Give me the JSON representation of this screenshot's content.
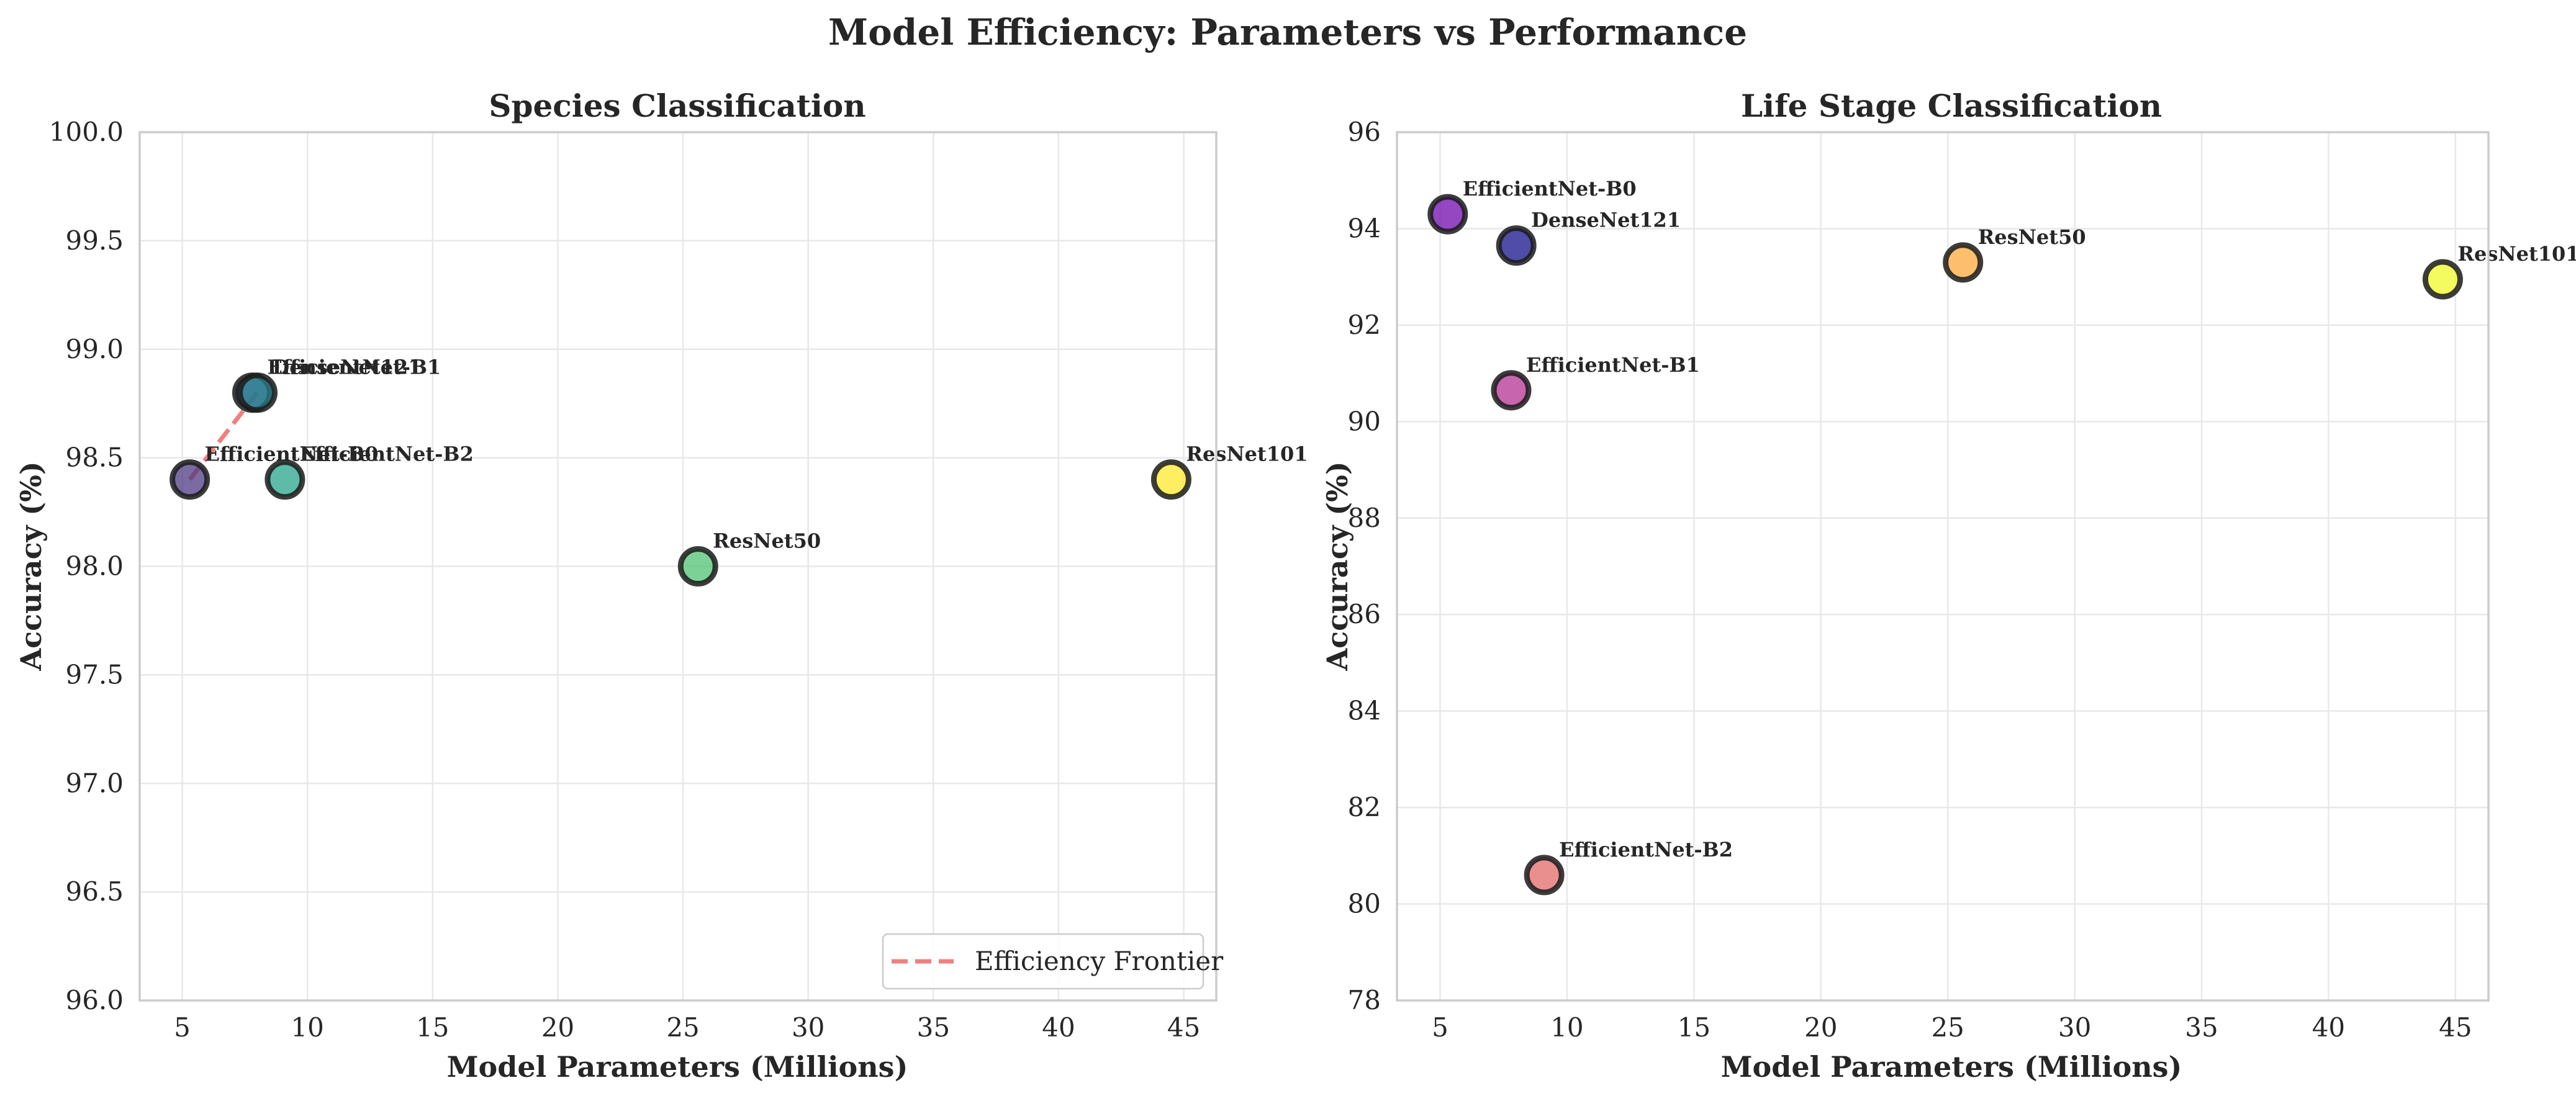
{
  "figure": {
    "title": "Model Efficiency: Parameters vs Performance"
  },
  "chart_data": [
    {
      "type": "scatter",
      "title": "Species Classification",
      "xlabel": "Model Parameters (Millions)",
      "ylabel": "Accuracy (%)",
      "xlim": [
        3.3,
        46.3
      ],
      "ylim": [
        96.0,
        100.0
      ],
      "xticks": [
        5,
        10,
        15,
        20,
        25,
        30,
        35,
        40,
        45
      ],
      "yticks": [
        96.0,
        96.5,
        97.0,
        97.5,
        98.0,
        98.5,
        99.0,
        99.5,
        100.0
      ],
      "ytick_decimals": 1,
      "grid": true,
      "points": [
        {
          "label": "EfficientNet-B0",
          "x": 5.3,
          "y": 98.4,
          "color": "#46337e"
        },
        {
          "label": "EfficientNet-B1",
          "x": 7.8,
          "y": 98.8,
          "color": "#365c8d"
        },
        {
          "label": "DenseNet121",
          "x": 8.0,
          "y": 98.8,
          "color": "#277f8e"
        },
        {
          "label": "EfficientNet-B2",
          "x": 9.1,
          "y": 98.4,
          "color": "#1fa187"
        },
        {
          "label": "ResNet50",
          "x": 25.6,
          "y": 98.0,
          "color": "#4ac16d"
        },
        {
          "label": "ResNet101",
          "x": 44.5,
          "y": 98.4,
          "color": "#fde725"
        }
      ],
      "frontier": {
        "label": "Efficiency Frontier",
        "color": "#f08080",
        "points": [
          [
            5.3,
            98.4
          ],
          [
            8.0,
            98.8
          ]
        ]
      },
      "legend_position": "lower right"
    },
    {
      "type": "scatter",
      "title": "Life Stage Classification",
      "xlabel": "Model Parameters (Millions)",
      "ylabel": "Accuracy (%)",
      "xlim": [
        3.3,
        46.3
      ],
      "ylim": [
        78,
        96
      ],
      "xticks": [
        5,
        10,
        15,
        20,
        25,
        30,
        35,
        40,
        45
      ],
      "yticks": [
        78,
        80,
        82,
        84,
        86,
        88,
        90,
        92,
        94,
        96
      ],
      "ytick_decimals": 0,
      "grid": true,
      "points": [
        {
          "label": "EfficientNet-B0",
          "x": 5.3,
          "y": 94.3,
          "color": "#6a00a8"
        },
        {
          "label": "DenseNet121",
          "x": 8.0,
          "y": 93.65,
          "color": "#0d0887"
        },
        {
          "label": "ResNet50",
          "x": 25.6,
          "y": 93.3,
          "color": "#fca636"
        },
        {
          "label": "ResNet101",
          "x": 44.5,
          "y": 92.95,
          "color": "#f0f921"
        },
        {
          "label": "EfficientNet-B1",
          "x": 7.8,
          "y": 90.65,
          "color": "#b12a90"
        },
        {
          "label": "EfficientNet-B2",
          "x": 9.1,
          "y": 80.6,
          "color": "#e16462"
        }
      ]
    }
  ]
}
